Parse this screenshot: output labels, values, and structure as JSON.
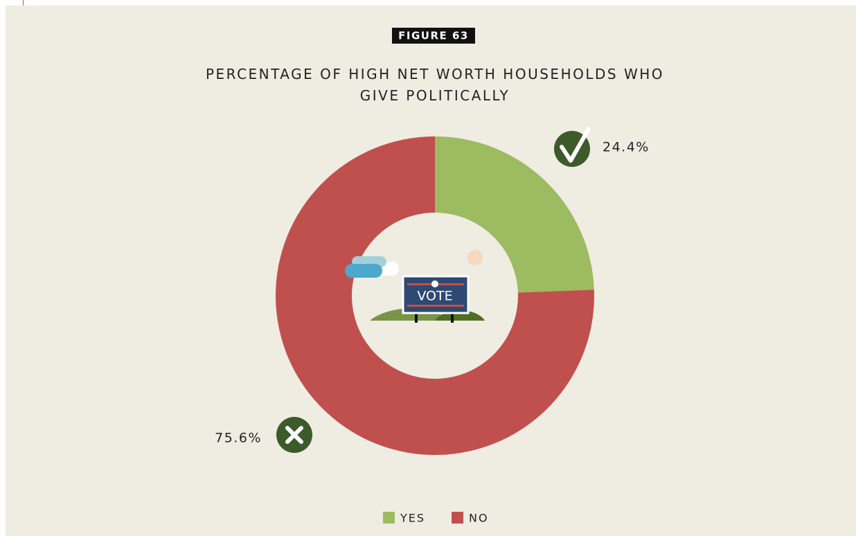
{
  "figure_label": "FIGURE 63",
  "chart_data": {
    "type": "donut",
    "title": "PERCENTAGE OF HIGH NET WORTH HOUSEHOLDS WHO GIVE POLITICALLY",
    "categories": [
      "YES",
      "NO"
    ],
    "values": [
      24.4,
      75.6
    ],
    "value_labels": [
      "24.4%",
      "75.6%"
    ],
    "colors": [
      "#9dbb61",
      "#c0504d"
    ],
    "legend": "bottom"
  },
  "illustration": {
    "sign": "VOTE"
  }
}
